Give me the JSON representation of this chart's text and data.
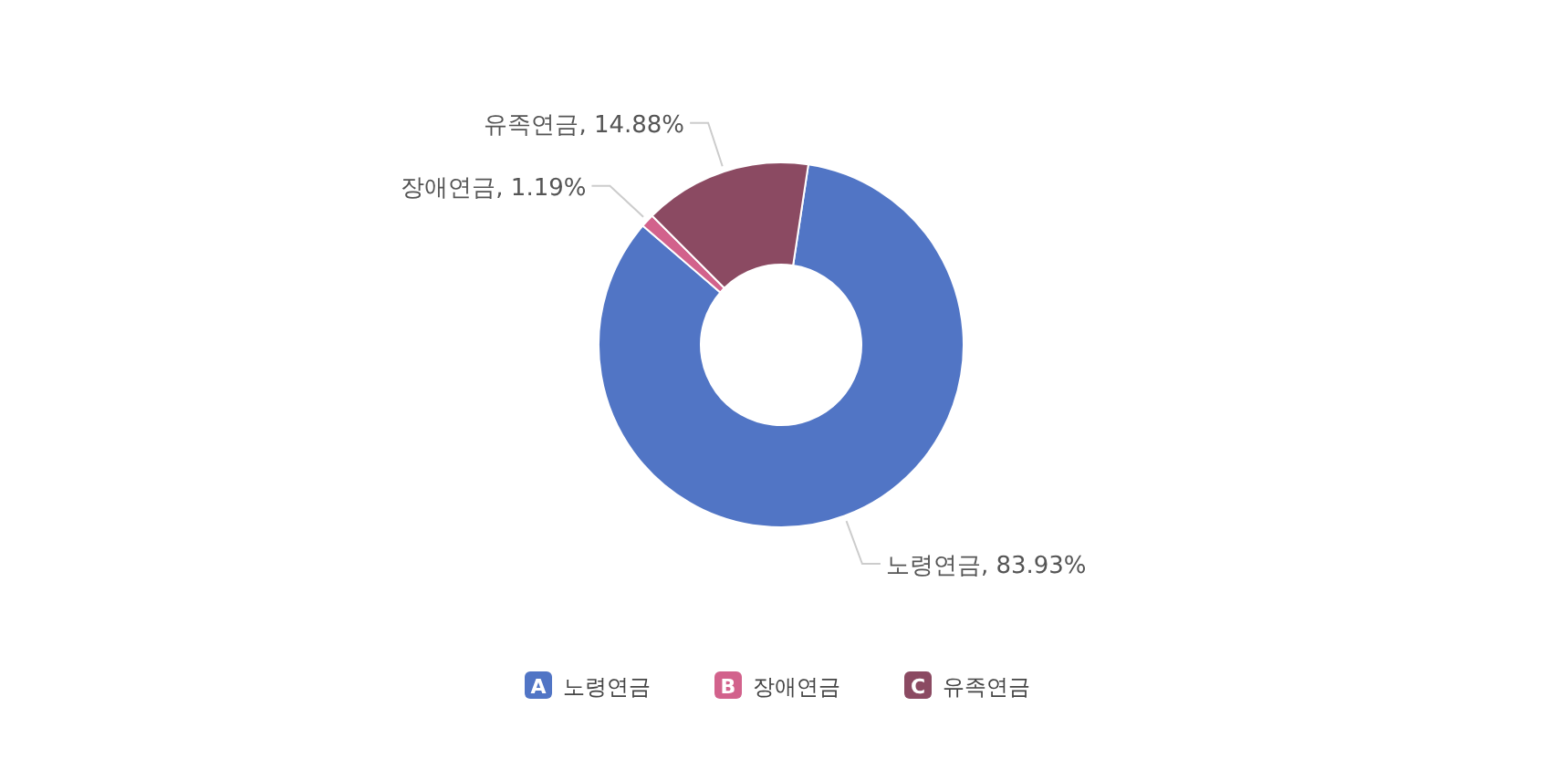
{
  "chart_data": {
    "type": "donut",
    "categories": [
      "노령연금",
      "장애연금",
      "유족연금"
    ],
    "values": [
      83.93,
      1.19,
      14.88
    ],
    "value_labels": [
      "노령연금, 83.93%",
      "장애연금, 1.19%",
      "유족연금, 14.88%"
    ],
    "colors": [
      "#5175c5",
      "#d2628c",
      "#8b4a62"
    ],
    "annotations": [
      "A",
      "B",
      "C"
    ],
    "legend": "bottom"
  }
}
